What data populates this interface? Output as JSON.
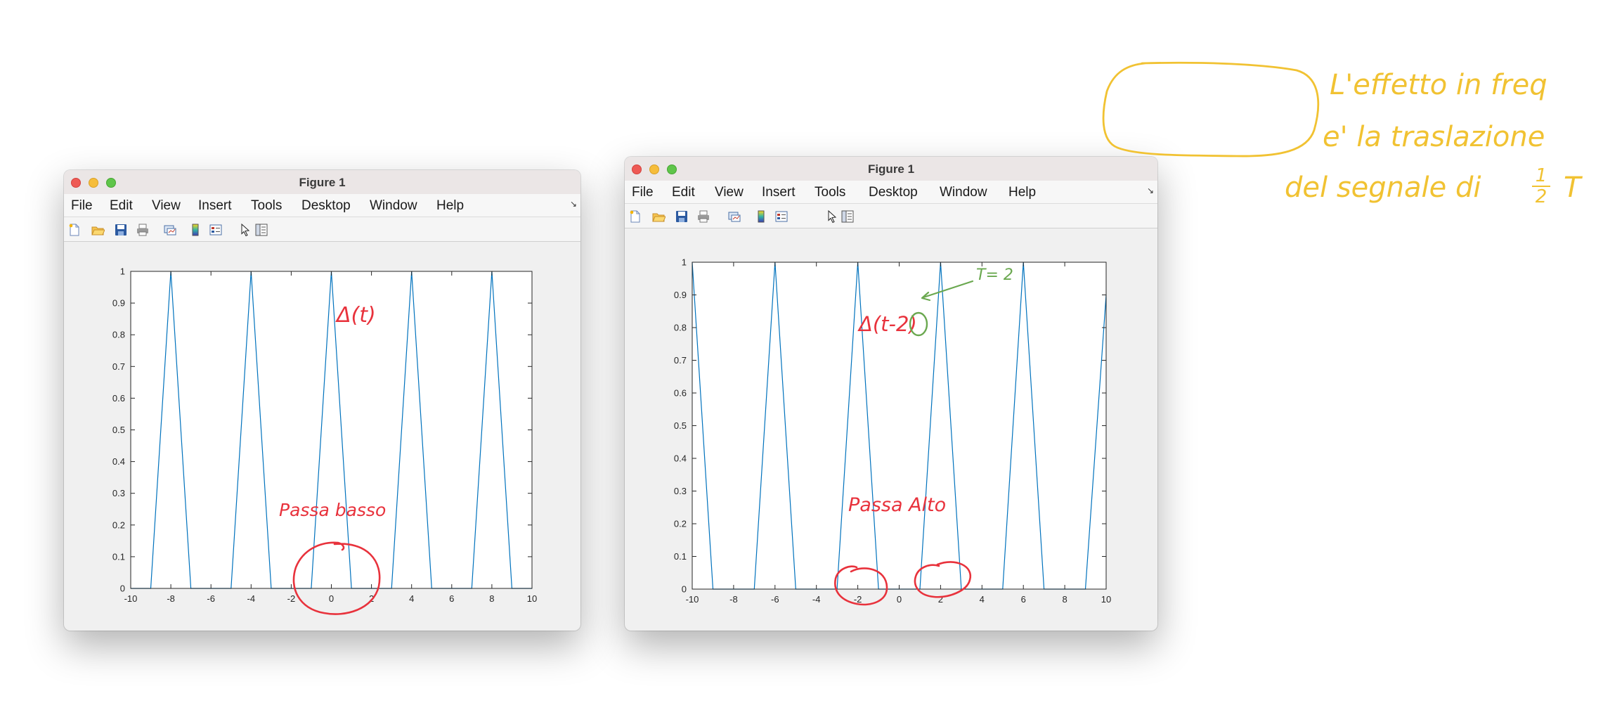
{
  "windows": [
    {
      "title": "Figure 1",
      "menu": [
        "File",
        "Edit",
        "View",
        "Insert",
        "Tools",
        "Desktop",
        "Window",
        "Help"
      ],
      "toolbar_icons": [
        "new-figure-icon",
        "open-file-icon",
        "save-icon",
        "print-icon",
        "link-plot-icon",
        "colorbar-icon",
        "legend-icon",
        "pointer-icon",
        "property-inspector-icon"
      ],
      "annotations": {
        "formula": "Δ(t)",
        "filter": "Passa basso"
      }
    },
    {
      "title": "Figure 1",
      "menu": [
        "File",
        "Edit",
        "View",
        "Insert",
        "Tools",
        "Desktop",
        "Window",
        "Help"
      ],
      "toolbar_icons": [
        "new-figure-icon",
        "open-file-icon",
        "save-icon",
        "print-icon",
        "link-plot-icon",
        "colorbar-icon",
        "legend-icon",
        "pointer-icon",
        "property-inspector-icon"
      ],
      "annotations": {
        "formula_prefix": "Δ(t-",
        "formula_arg": "2",
        "formula_suffix": ")",
        "period": "T= 2",
        "filter": "Passa Alto"
      }
    }
  ],
  "note": {
    "line1": "L'effetto in freq",
    "line2": "e' la traslazione",
    "line3": "del segnale di",
    "fraction_num": "1",
    "fraction_den": "2",
    "fraction_var": "T"
  },
  "chart_data": [
    {
      "type": "line",
      "xlim": [
        -10,
        10
      ],
      "ylim": [
        0,
        1
      ],
      "xticks": [
        -10,
        -8,
        -6,
        -4,
        -2,
        0,
        2,
        4,
        6,
        8,
        10
      ],
      "yticks": [
        0,
        0.1,
        0.2,
        0.3,
        0.4,
        0.5,
        0.6,
        0.7,
        0.8,
        0.9,
        1
      ],
      "grid": false,
      "series": [
        {
          "color": "#0072bd",
          "x": [
            -10,
            -9,
            -8,
            -7,
            -6,
            -5,
            -4,
            -3,
            -2,
            -1,
            0,
            1,
            2,
            3,
            4,
            5,
            6,
            7,
            8,
            9,
            10
          ],
          "y": [
            0,
            0,
            1,
            0,
            0,
            0,
            1,
            0,
            0,
            0,
            1,
            0,
            0,
            0,
            1,
            0,
            0,
            0,
            1,
            0,
            0
          ]
        }
      ]
    },
    {
      "type": "line",
      "xlim": [
        -10,
        10
      ],
      "ylim": [
        0,
        1
      ],
      "xticks": [
        -10,
        -8,
        -6,
        -4,
        -2,
        0,
        2,
        4,
        6,
        8,
        10
      ],
      "yticks": [
        0,
        0.1,
        0.2,
        0.3,
        0.4,
        0.5,
        0.6,
        0.7,
        0.8,
        0.9,
        1
      ],
      "grid": false,
      "series": [
        {
          "color": "#0072bd",
          "x": [
            -10,
            -9,
            -8,
            -7,
            -6,
            -5,
            -4,
            -3,
            -2,
            -1,
            0,
            1,
            2,
            3,
            4,
            5,
            6,
            7,
            8,
            9,
            10
          ],
          "y": [
            1,
            0,
            0,
            0,
            1,
            0,
            0,
            0,
            1,
            0,
            0,
            0,
            1,
            0,
            0,
            0,
            1,
            0,
            0,
            0,
            0.9
          ]
        }
      ]
    }
  ],
  "colors": {
    "annotation_red": "#e8323c",
    "annotation_green": "#6aa84f",
    "note_yellow": "#f1c232",
    "plot_line": "#0072bd"
  }
}
